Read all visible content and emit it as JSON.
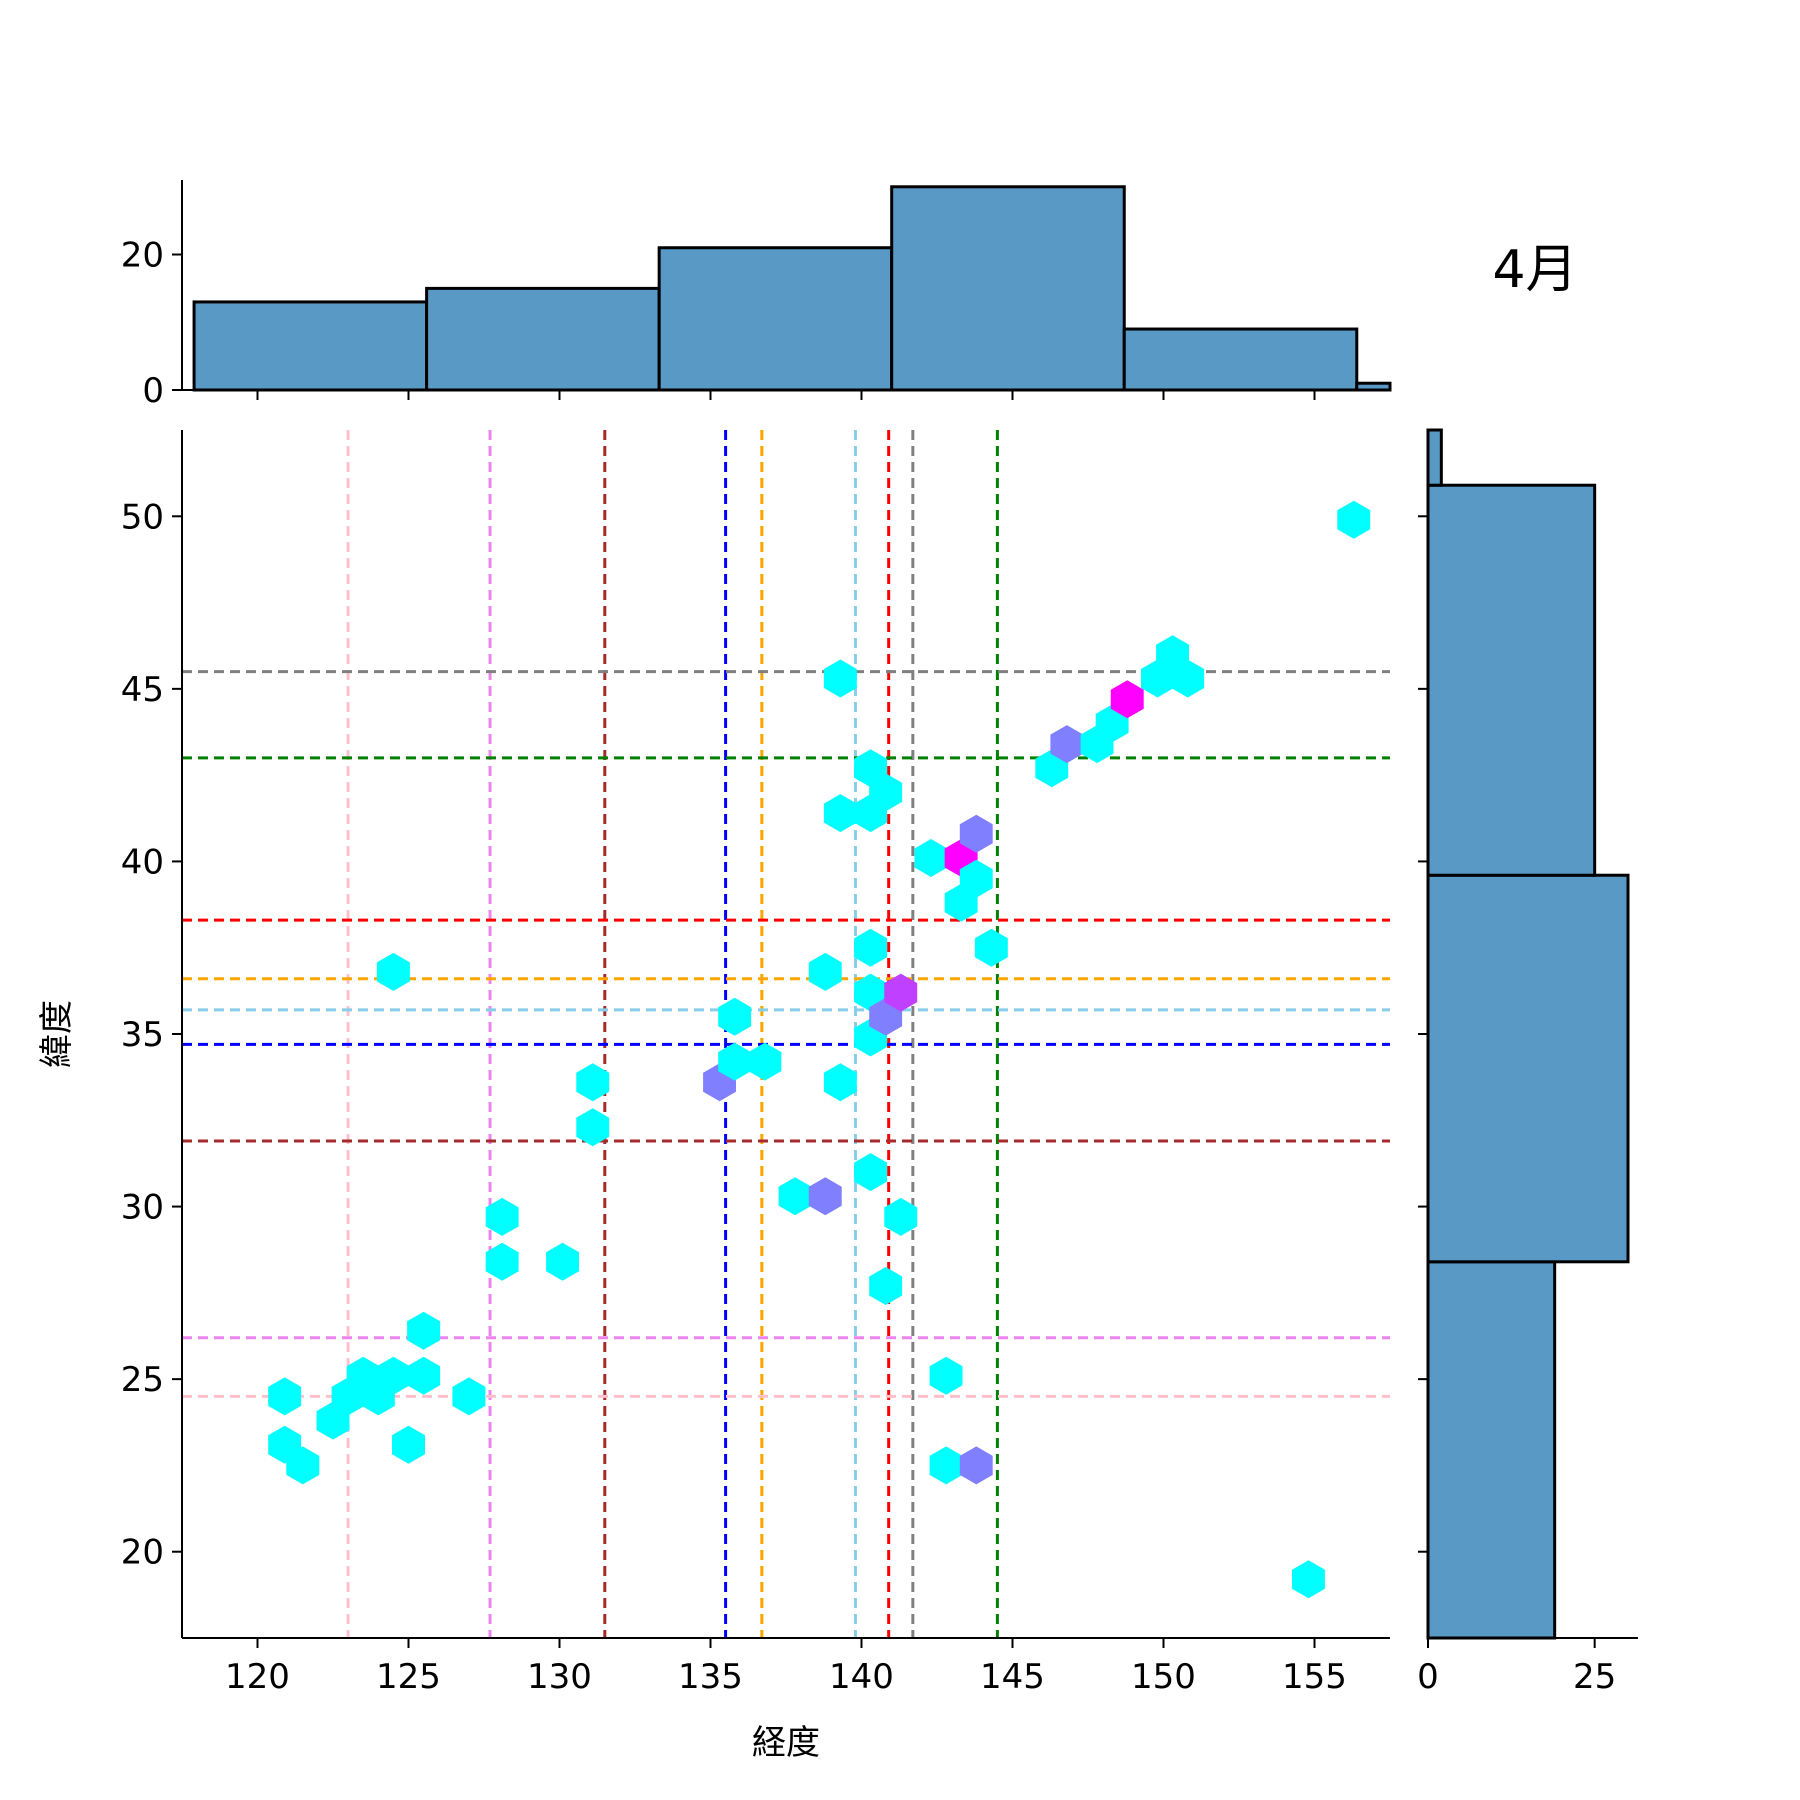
{
  "title": "4月",
  "chart_data": {
    "type": "hexbin",
    "xlabel": "経度",
    "ylabel": "緯度",
    "xlim": [
      117.5,
      157.5
    ],
    "ylim": [
      17.5,
      52.5
    ],
    "xticks": [
      120,
      125,
      130,
      135,
      140,
      145,
      150,
      155
    ],
    "yticks": [
      20,
      25,
      30,
      35,
      40,
      45,
      50
    ],
    "hexbins": [
      {
        "x": 120.9,
        "y": 24.5,
        "count": 1
      },
      {
        "x": 120.9,
        "y": 23.1,
        "count": 1
      },
      {
        "x": 121.5,
        "y": 22.5,
        "count": 1
      },
      {
        "x": 122.5,
        "y": 23.8,
        "count": 1
      },
      {
        "x": 123.0,
        "y": 24.5,
        "count": 1
      },
      {
        "x": 123.5,
        "y": 25.1,
        "count": 1
      },
      {
        "x": 124.0,
        "y": 24.5,
        "count": 1
      },
      {
        "x": 124.5,
        "y": 25.1,
        "count": 1
      },
      {
        "x": 125.0,
        "y": 23.1,
        "count": 1
      },
      {
        "x": 125.5,
        "y": 25.1,
        "count": 1
      },
      {
        "x": 125.5,
        "y": 26.4,
        "count": 1
      },
      {
        "x": 127.0,
        "y": 24.5,
        "count": 1
      },
      {
        "x": 124.5,
        "y": 36.8,
        "count": 1
      },
      {
        "x": 128.1,
        "y": 29.7,
        "count": 1
      },
      {
        "x": 128.1,
        "y": 28.4,
        "count": 1
      },
      {
        "x": 130.1,
        "y": 28.4,
        "count": 1
      },
      {
        "x": 131.1,
        "y": 33.6,
        "count": 1
      },
      {
        "x": 131.1,
        "y": 32.3,
        "count": 1
      },
      {
        "x": 135.3,
        "y": 33.6,
        "count": 2
      },
      {
        "x": 135.8,
        "y": 35.5,
        "count": 1
      },
      {
        "x": 135.8,
        "y": 34.2,
        "count": 1
      },
      {
        "x": 136.8,
        "y": 34.2,
        "count": 1
      },
      {
        "x": 137.8,
        "y": 30.3,
        "count": 1
      },
      {
        "x": 138.8,
        "y": 30.3,
        "count": 2
      },
      {
        "x": 138.8,
        "y": 36.8,
        "count": 1
      },
      {
        "x": 139.3,
        "y": 33.6,
        "count": 1
      },
      {
        "x": 139.3,
        "y": 41.4,
        "count": 1
      },
      {
        "x": 139.3,
        "y": 45.3,
        "count": 1
      },
      {
        "x": 140.3,
        "y": 41.4,
        "count": 1
      },
      {
        "x": 140.3,
        "y": 42.7,
        "count": 1
      },
      {
        "x": 140.3,
        "y": 37.5,
        "count": 1
      },
      {
        "x": 140.3,
        "y": 36.2,
        "count": 1
      },
      {
        "x": 140.3,
        "y": 34.9,
        "count": 1
      },
      {
        "x": 140.3,
        "y": 31.0,
        "count": 1
      },
      {
        "x": 140.8,
        "y": 35.5,
        "count": 2
      },
      {
        "x": 140.8,
        "y": 42.0,
        "count": 1
      },
      {
        "x": 141.3,
        "y": 36.2,
        "count": 3
      },
      {
        "x": 141.3,
        "y": 29.7,
        "count": 1
      },
      {
        "x": 140.8,
        "y": 27.7,
        "count": 1
      },
      {
        "x": 142.3,
        "y": 40.1,
        "count": 1
      },
      {
        "x": 143.3,
        "y": 40.1,
        "count": 4
      },
      {
        "x": 143.3,
        "y": 38.8,
        "count": 1
      },
      {
        "x": 143.8,
        "y": 40.8,
        "count": 2
      },
      {
        "x": 143.8,
        "y": 39.5,
        "count": 1
      },
      {
        "x": 144.3,
        "y": 37.5,
        "count": 1
      },
      {
        "x": 142.8,
        "y": 25.1,
        "count": 1
      },
      {
        "x": 142.8,
        "y": 22.5,
        "count": 1
      },
      {
        "x": 143.8,
        "y": 22.5,
        "count": 2
      },
      {
        "x": 146.3,
        "y": 42.7,
        "count": 1
      },
      {
        "x": 146.8,
        "y": 43.4,
        "count": 2
      },
      {
        "x": 147.8,
        "y": 43.4,
        "count": 1
      },
      {
        "x": 148.3,
        "y": 44.0,
        "count": 1
      },
      {
        "x": 148.8,
        "y": 44.7,
        "count": 4
      },
      {
        "x": 149.8,
        "y": 45.3,
        "count": 1
      },
      {
        "x": 150.3,
        "y": 46.0,
        "count": 1
      },
      {
        "x": 150.8,
        "y": 45.3,
        "count": 1
      },
      {
        "x": 154.8,
        "y": 19.2,
        "count": 1
      },
      {
        "x": 156.3,
        "y": 49.9,
        "count": 1
      }
    ],
    "ref_lines_vertical": [
      {
        "value": 123.0,
        "color": "#ffc0cb"
      },
      {
        "value": 127.7,
        "color": "#ee82ee"
      },
      {
        "value": 131.5,
        "color": "#a52a2a"
      },
      {
        "value": 135.5,
        "color": "#0000ff"
      },
      {
        "value": 136.7,
        "color": "#ffa500"
      },
      {
        "value": 139.8,
        "color": "#87ceeb"
      },
      {
        "value": 140.9,
        "color": "#ff0000"
      },
      {
        "value": 141.7,
        "color": "#808080"
      },
      {
        "value": 144.5,
        "color": "#008000"
      }
    ],
    "ref_lines_horizontal": [
      {
        "value": 45.5,
        "color": "#808080"
      },
      {
        "value": 43.0,
        "color": "#008000"
      },
      {
        "value": 38.3,
        "color": "#ff0000"
      },
      {
        "value": 36.6,
        "color": "#ffa500"
      },
      {
        "value": 35.7,
        "color": "#87ceeb"
      },
      {
        "value": 34.7,
        "color": "#0000ff"
      },
      {
        "value": 31.9,
        "color": "#a52a2a"
      },
      {
        "value": 26.2,
        "color": "#ee82ee"
      },
      {
        "value": 24.5,
        "color": "#ffc0cb"
      }
    ],
    "marginal_x": {
      "ylim": [
        0,
        31
      ],
      "yticks": [
        0,
        20
      ],
      "bins": [
        {
          "start": 117.9,
          "end": 125.6,
          "count": 13
        },
        {
          "start": 125.6,
          "end": 133.3,
          "count": 15
        },
        {
          "start": 133.3,
          "end": 141.0,
          "count": 21
        },
        {
          "start": 141.0,
          "end": 148.7,
          "count": 30
        },
        {
          "start": 148.7,
          "end": 156.4,
          "count": 9
        },
        {
          "start": 156.4,
          "end": 164.1,
          "count": 1
        }
      ]
    },
    "marginal_y": {
      "xlim": [
        0,
        31.5
      ],
      "xticks": [
        0,
        25
      ],
      "bins": [
        {
          "start": 17.1,
          "end": 28.4,
          "count": 19
        },
        {
          "start": 28.4,
          "end": 39.6,
          "count": 30
        },
        {
          "start": 39.6,
          "end": 50.9,
          "count": 25
        },
        {
          "start": 50.9,
          "end": 62.1,
          "count": 2
        }
      ]
    },
    "hist_color": "#5899c5",
    "colormap": [
      "#00ffff",
      "#8080ff",
      "#bf40ff",
      "#ff00ff"
    ]
  }
}
